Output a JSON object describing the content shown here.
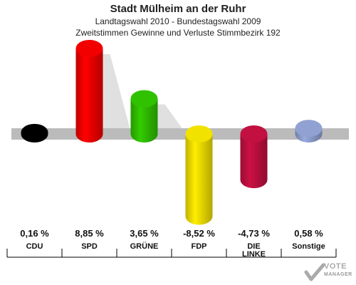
{
  "header": {
    "title": "Stadt Mülheim an der Ruhr",
    "subtitle1": "Landtagswahl 2010 - Bundestagswahl 2009",
    "subtitle2": "Zweitstimmen Gewinne und Verluste Stimmbezirk 192"
  },
  "logo": {
    "text1": "VOTE",
    "text2": "MANAGER"
  },
  "chart_data": {
    "type": "bar",
    "title": "Stadt Mülheim an der Ruhr",
    "categories": [
      "CDU",
      "SPD",
      "GRÜNE",
      "FDP",
      "DIE LINKE",
      "Sonstige"
    ],
    "values": [
      0.16,
      8.85,
      3.65,
      -8.52,
      -4.73,
      0.58
    ],
    "value_labels": [
      "0,16 %",
      "8,85 %",
      "3,65 %",
      "-8,52 %",
      "-4,73 %",
      "0,58 %"
    ],
    "colors": [
      "#000000",
      "#ff0000",
      "#33cc00",
      "#ffee00",
      "#cc1144",
      "#99aadd"
    ],
    "ylim": [
      -10,
      10
    ],
    "grid": false,
    "legend": "none"
  }
}
